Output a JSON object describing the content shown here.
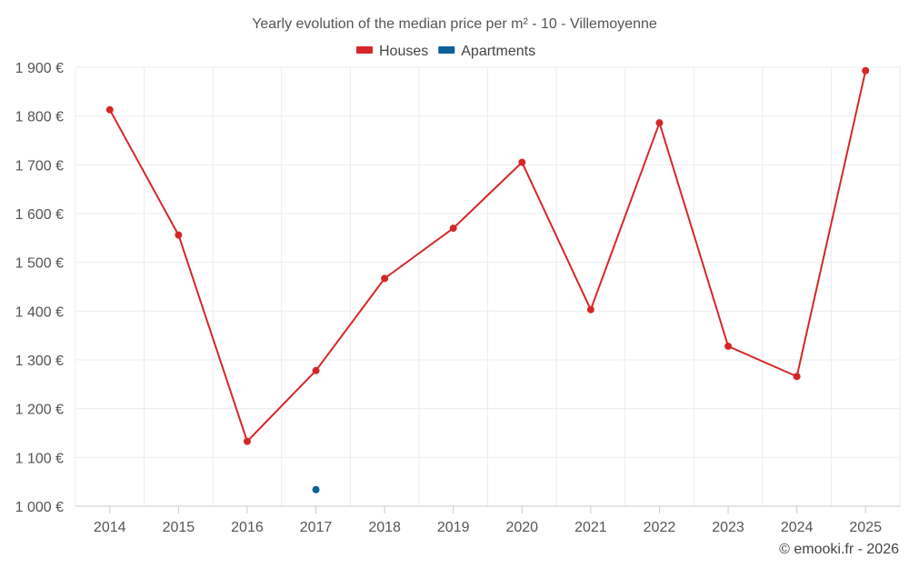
{
  "chart_data": {
    "type": "line",
    "title": "Yearly evolution of the median price per m² - 10 - Villemoyenne",
    "x": [
      "2014",
      "2015",
      "2016",
      "2017",
      "2018",
      "2019",
      "2020",
      "2021",
      "2022",
      "2023",
      "2024",
      "2025"
    ],
    "series": [
      {
        "name": "Houses",
        "color": "#d62728",
        "values": [
          1813,
          1556,
          1133,
          1278,
          1467,
          1570,
          1705,
          1403,
          1786,
          1328,
          1266,
          1893
        ]
      },
      {
        "name": "Apartments",
        "color": "#0f5f99",
        "values": [
          null,
          null,
          null,
          1034,
          null,
          null,
          null,
          null,
          null,
          null,
          null,
          null
        ]
      }
    ],
    "ylim": [
      1000,
      1900
    ],
    "yticks": [
      1000,
      1100,
      1200,
      1300,
      1400,
      1500,
      1600,
      1700,
      1800,
      1900
    ],
    "ytick_labels": [
      "1 000 €",
      "1 100 €",
      "1 200 €",
      "1 300 €",
      "1 400 €",
      "1 500 €",
      "1 600 €",
      "1 700 €",
      "1 800 €",
      "1 900 €"
    ],
    "legend": "top-center",
    "grid": true
  },
  "credit": "© emooki.fr - 2026"
}
